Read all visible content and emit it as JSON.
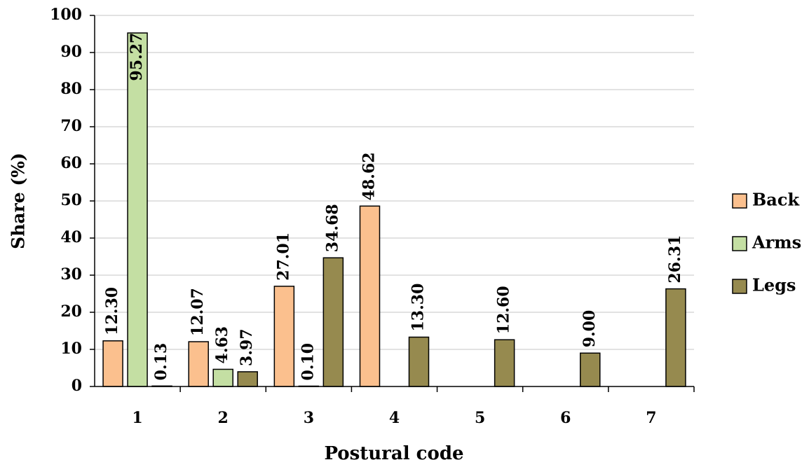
{
  "chart_data": {
    "type": "bar",
    "x_label": "Postural code",
    "y_label": "Share (%)",
    "categories": [
      "1",
      "2",
      "3",
      "4",
      "5",
      "6",
      "7"
    ],
    "series": [
      {
        "name": "Back",
        "color": "#fbc08e",
        "values": [
          12.3,
          12.07,
          27.01,
          48.62,
          null,
          null,
          null
        ],
        "value_labels": [
          "12.30",
          "12.07",
          "27.01",
          "48.62",
          null,
          null,
          null
        ]
      },
      {
        "name": "Arms",
        "color": "#c4dfa3",
        "values": [
          95.27,
          4.63,
          0.1,
          null,
          null,
          null,
          null
        ],
        "value_labels": [
          "95.27",
          "4.63",
          "0.10",
          null,
          null,
          null,
          null
        ]
      },
      {
        "name": "Legs",
        "color": "#968a4f",
        "values": [
          0.13,
          3.97,
          34.68,
          13.3,
          12.6,
          9.0,
          26.31
        ],
        "value_labels": [
          "0.13",
          "3.97",
          "34.68",
          "13.30",
          "12.60",
          "9.00",
          "26.31"
        ]
      }
    ],
    "ylim": [
      0,
      100
    ],
    "yticks": [
      0,
      10,
      20,
      30,
      40,
      50,
      60,
      70,
      80,
      90,
      100
    ],
    "grid": true,
    "legend": "right"
  }
}
